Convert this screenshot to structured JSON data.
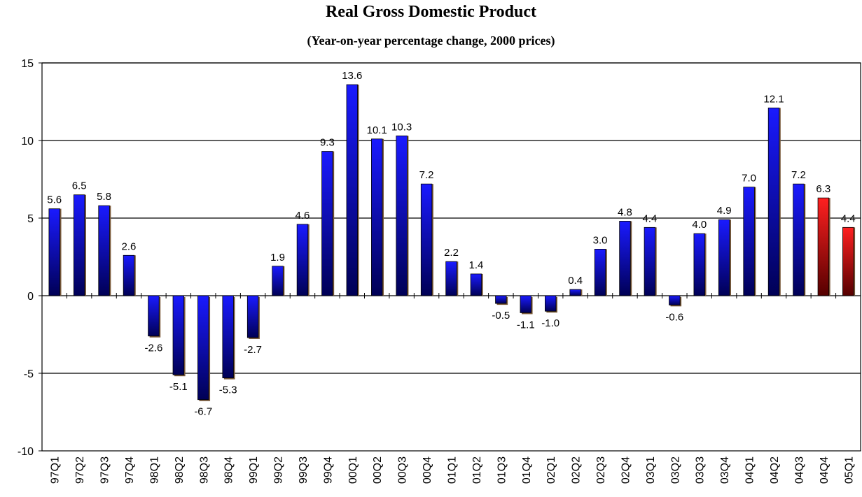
{
  "chart_data": {
    "type": "bar",
    "title": "Real Gross Domestic Product",
    "subtitle": "(Year-on-year percentage change, 2000 prices)",
    "xlabel": "",
    "ylabel": "",
    "ylim": [
      -10,
      15
    ],
    "yticks": [
      -10,
      -5,
      0,
      5,
      10,
      15
    ],
    "grid": true,
    "categories": [
      "97Q1",
      "97Q2",
      "97Q3",
      "97Q4",
      "98Q1",
      "98Q2",
      "98Q3",
      "98Q4",
      "99Q1",
      "99Q2",
      "99Q3",
      "99Q4",
      "00Q1",
      "00Q2",
      "00Q3",
      "00Q4",
      "01Q1",
      "01Q2",
      "01Q3",
      "01Q4",
      "02Q1",
      "02Q2",
      "02Q3",
      "02Q4",
      "03Q1",
      "03Q2",
      "03Q3",
      "03Q4",
      "04Q1",
      "04Q2",
      "04Q3",
      "04Q4",
      "05Q1"
    ],
    "values": [
      5.6,
      6.5,
      5.8,
      2.6,
      -2.6,
      -5.1,
      -6.7,
      -5.3,
      -2.7,
      1.9,
      4.6,
      9.3,
      13.6,
      10.1,
      10.3,
      7.2,
      2.2,
      1.4,
      -0.5,
      -1.1,
      -1.0,
      0.4,
      3.0,
      4.8,
      4.4,
      -0.6,
      4.0,
      4.9,
      7.0,
      12.1,
      7.2,
      6.3,
      4.4
    ],
    "data_labels": [
      "5.6",
      "6.5",
      "5.8",
      "2.6",
      "-2.6",
      "-5.1",
      "-6.7",
      "-5.3",
      "-2.7",
      "1.9",
      "4.6",
      "9.3",
      "13.6",
      "10.1",
      "10.3",
      "7.2",
      "2.2",
      "1.4",
      "-0.5",
      "-1.1",
      "-1.0",
      "0.4",
      "3.0",
      "4.8",
      "4.4",
      "-0.6",
      "4.0",
      "4.9",
      "7.0",
      "12.1",
      "7.2",
      "6.3",
      "4.4"
    ],
    "colors": {
      "default_bar": "#1a1aee",
      "default_bar_dark": "#00005a",
      "highlight_bar": "#ee1a1a",
      "highlight_bar_dark": "#5a0000"
    },
    "highlighted_categories": [
      "04Q4",
      "05Q1"
    ]
  }
}
